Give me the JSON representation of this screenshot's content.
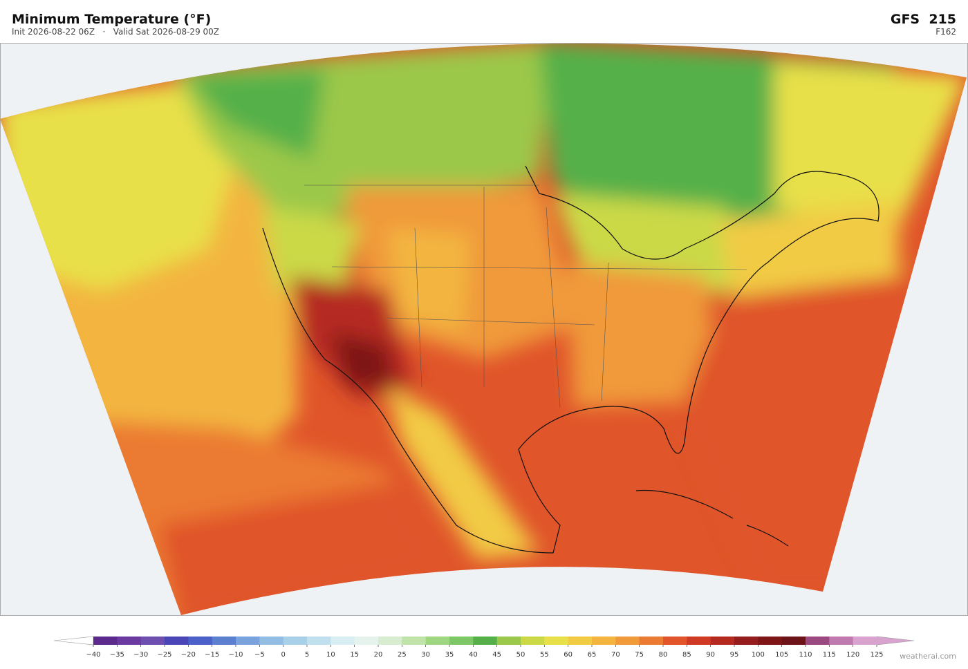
{
  "header": {
    "title": "Minimum Temperature  (°F)",
    "subtitle": "Init 2026-08-22 06Z   ·   Valid Sat 2026-08-29 00Z",
    "model": "GFS  215",
    "forecast_hour": "F162"
  },
  "colorbar": {
    "ticks": [
      {
        "value": -40,
        "label": "−40"
      },
      {
        "value": -35,
        "label": "−35"
      },
      {
        "value": -30,
        "label": "−30"
      },
      {
        "value": -25,
        "label": "−25"
      },
      {
        "value": -20,
        "label": "−20"
      },
      {
        "value": -15,
        "label": "−15"
      },
      {
        "value": -10,
        "label": "−10"
      },
      {
        "value": -5,
        "label": "−5"
      },
      0,
      5,
      10,
      15,
      20,
      25,
      30,
      35,
      40,
      45,
      50,
      55,
      60,
      65,
      70,
      75,
      80,
      85,
      90,
      95,
      100,
      105,
      110,
      115,
      120,
      125
    ],
    "colors": [
      "#5b2a8c",
      "#6a3aa0",
      "#6e4fb0",
      "#4a46b8",
      "#4b60c8",
      "#5d7fd0",
      "#7aa2dc",
      "#93bde2",
      "#a8d0e8",
      "#c0e0ef",
      "#d8eef2",
      "#e6f3ec",
      "#d8ecd0",
      "#bfe3a8",
      "#9fd681",
      "#7ec766",
      "#55b04a",
      "#9bc84a",
      "#cbd946",
      "#e8e04a",
      "#f2cb44",
      "#f3b540",
      "#f09a3a",
      "#eb7a33",
      "#e0552a",
      "#cf3a24",
      "#b52a20",
      "#951d1d",
      "#7e1618",
      "#6d1418",
      "#9a4a80",
      "#c17ab0",
      "#d9a3cf"
    ],
    "under_color": "#ffffff",
    "over_color": "#d9a3cf"
  },
  "credit": "weatherai.com"
}
